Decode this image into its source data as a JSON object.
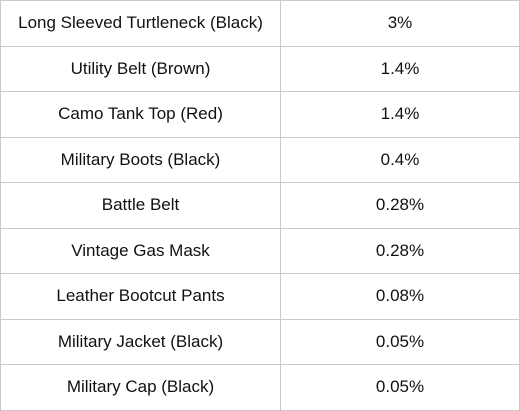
{
  "rows": [
    {
      "item": "Long Sleeved Turtleneck (Black)",
      "rate": "3%"
    },
    {
      "item": "Utility Belt (Brown)",
      "rate": "1.4%"
    },
    {
      "item": "Camo Tank Top (Red)",
      "rate": "1.4%"
    },
    {
      "item": "Military Boots (Black)",
      "rate": "0.4%"
    },
    {
      "item": "Battle Belt",
      "rate": "0.28%"
    },
    {
      "item": "Vintage Gas Mask",
      "rate": "0.28%"
    },
    {
      "item": "Leather Bootcut Pants",
      "rate": "0.08%"
    },
    {
      "item": "Military Jacket (Black)",
      "rate": "0.05%"
    },
    {
      "item": "Military Cap (Black)",
      "rate": "0.05%"
    }
  ],
  "colors": {
    "border": "#c9c9c9",
    "text": "#111111",
    "background": "#ffffff"
  }
}
